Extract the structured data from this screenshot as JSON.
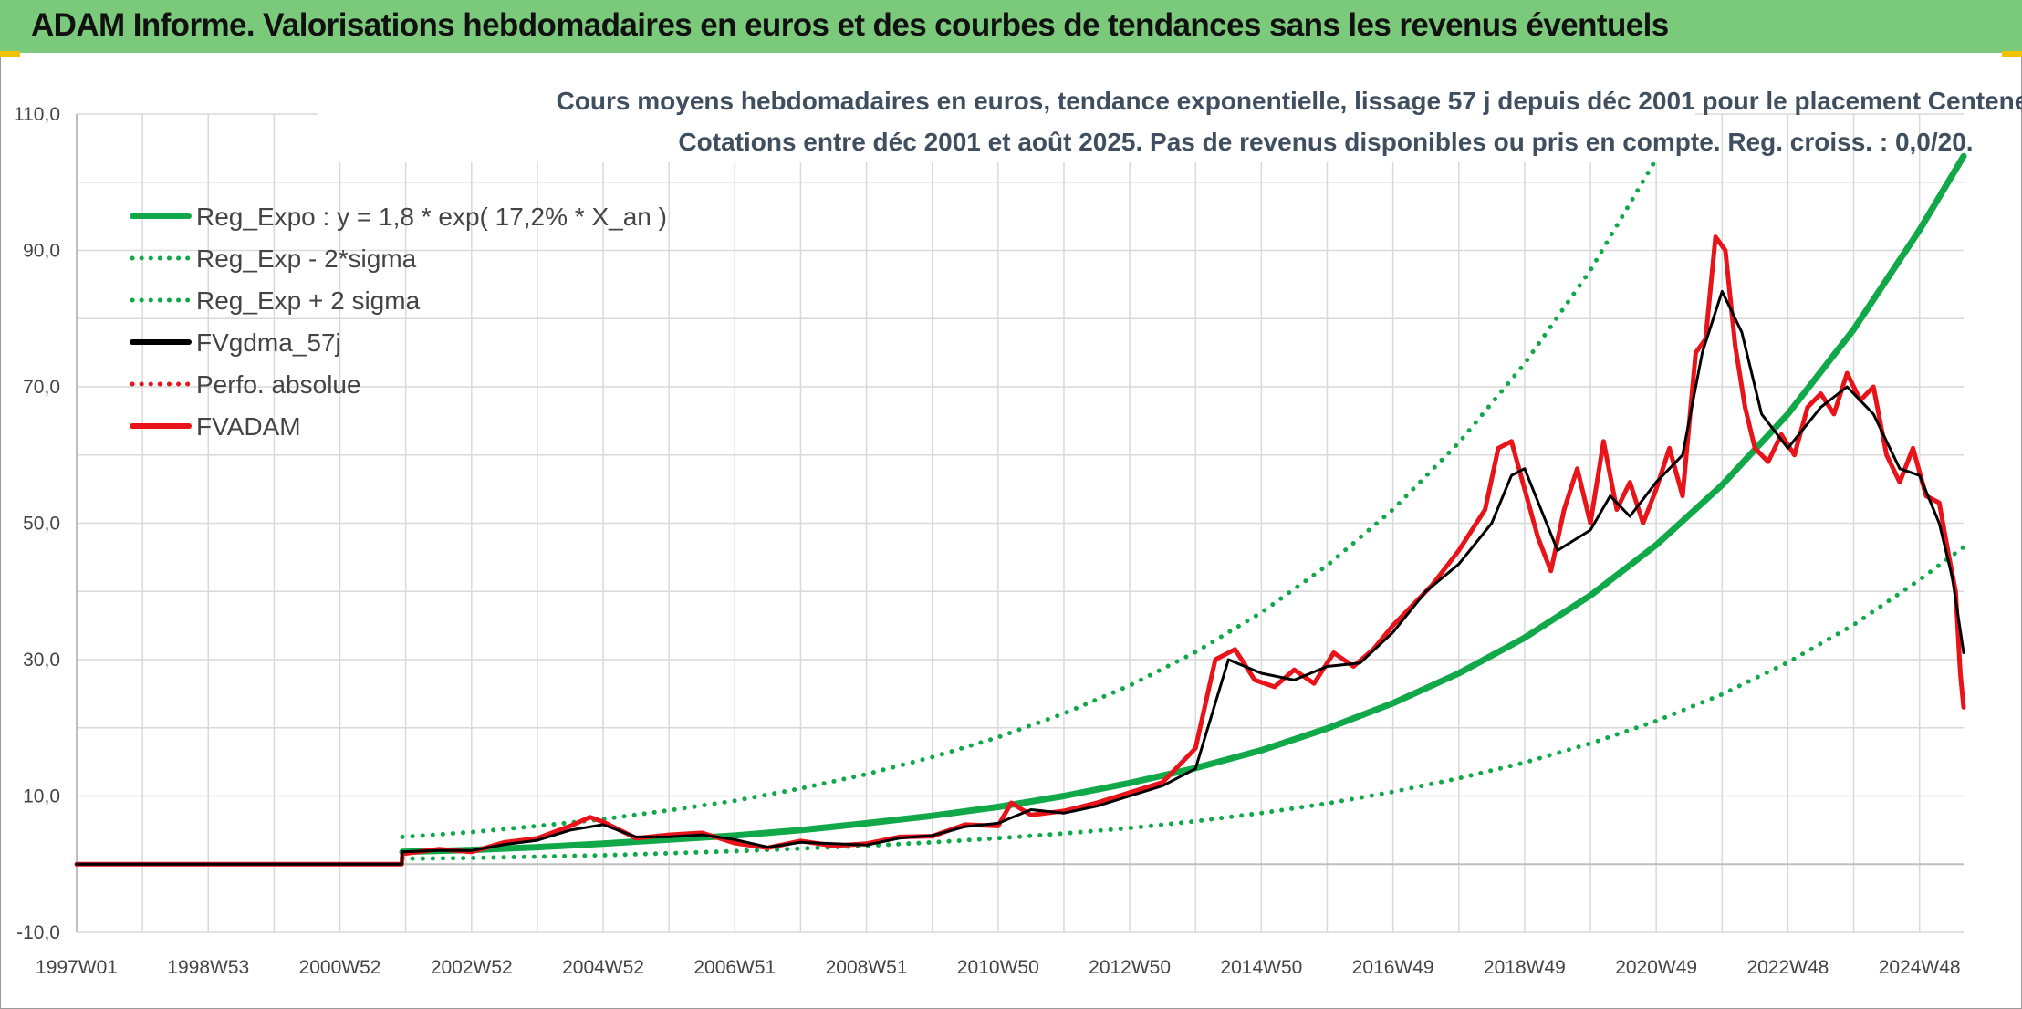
{
  "header": {
    "title": "ADAM Informe. Valorisations hebdomadaires en euros et des courbes de tendances sans les revenus éventuels",
    "background_color": "#7bc97a"
  },
  "chart_data": {
    "type": "line",
    "title": "Cours moyens hebdomadaires en euros, tendance exponentielle, lissage 57 j depuis déc 2001 pour le placement Centene Corp",
    "subtitle": "Cotations entre déc 2001 et août 2025. Pas de revenus disponibles ou pris en compte. Reg. croiss. : 0,0/20.",
    "xlabel": "",
    "ylabel": "",
    "x_range": [
      1997.0,
      2025.67
    ],
    "ylim": [
      -10,
      110
    ],
    "y_ticks": [
      -10,
      10,
      30,
      50,
      70,
      90,
      110
    ],
    "y_tick_labels": [
      "-10,0",
      "10,0",
      "30,0",
      "50,0",
      "70,0",
      "90,0",
      "110,0"
    ],
    "x_ticks": [
      1997.0,
      1999.0,
      2001.0,
      2003.0,
      2005.0,
      2007.0,
      2009.0,
      2011.0,
      2013.0,
      2015.0,
      2017.0,
      2019.0,
      2021.0,
      2023.0,
      2025.0
    ],
    "x_tick_labels": [
      "1997W01",
      "1998W53",
      "2000W52",
      "2002W52",
      "2004W52",
      "2006W51",
      "2008W51",
      "2010W50",
      "2012W50",
      "2014W50",
      "2016W49",
      "2018W49",
      "2020W49",
      "2022W48",
      "2024W48"
    ],
    "grid": true,
    "legend_position": "top-left",
    "series": [
      {
        "name": "Reg_Expo : y = 1,8 * exp( 17,2% *  X_an )",
        "color": "#11a84a",
        "style": "solid",
        "x": [
          2001.95,
          2003,
          2004,
          2005,
          2006,
          2007,
          2008,
          2009,
          2010,
          2011,
          2012,
          2013,
          2014,
          2015,
          2016,
          2017,
          2018,
          2019,
          2020,
          2021,
          2022,
          2023,
          2024,
          2025,
          2025.67
        ],
        "y": [
          1.8,
          2.1,
          2.5,
          3.0,
          3.6,
          4.2,
          5.0,
          6.0,
          7.1,
          8.4,
          10.0,
          11.9,
          14.1,
          16.7,
          19.9,
          23.6,
          28.0,
          33.2,
          39.4,
          46.8,
          55.6,
          66.0,
          78.4,
          93.0,
          103.8
        ]
      },
      {
        "name": "Reg_Exp - 2*sigma",
        "color": "#11a84a",
        "style": "dotted",
        "x": [
          2001.95,
          2003,
          2004,
          2005,
          2006,
          2007,
          2008,
          2009,
          2010,
          2011,
          2012,
          2013,
          2014,
          2015,
          2016,
          2017,
          2018,
          2019,
          2020,
          2021,
          2022,
          2023,
          2024,
          2025,
          2025.67
        ],
        "y": [
          0.8,
          0.9,
          1.1,
          1.3,
          1.6,
          1.9,
          2.3,
          2.7,
          3.2,
          3.8,
          4.5,
          5.3,
          6.3,
          7.5,
          8.9,
          10.6,
          12.6,
          14.9,
          17.7,
          21.0,
          24.9,
          29.6,
          35.1,
          41.7,
          46.5
        ]
      },
      {
        "name": "Reg_Exp + 2 sigma",
        "color": "#11a84a",
        "style": "dotted",
        "x": [
          2001.95,
          2003,
          2004,
          2005,
          2006,
          2007,
          2008,
          2009,
          2010,
          2011,
          2012,
          2013,
          2014,
          2015,
          2016,
          2017,
          2018,
          2019,
          2020,
          2021,
          2021.35
        ],
        "y": [
          4.0,
          4.7,
          5.6,
          6.6,
          7.9,
          9.3,
          11.1,
          13.2,
          15.7,
          18.6,
          22.1,
          26.2,
          31.1,
          36.9,
          43.8,
          52.0,
          61.8,
          73.4,
          87.1,
          103.4,
          110.0
        ]
      },
      {
        "name": "FVgdma_57j",
        "color": "#000000",
        "style": "solid",
        "x": [
          1997.0,
          2001.0,
          2001.94,
          2001.95,
          2002.5,
          2003.0,
          2003.5,
          2004.0,
          2004.5,
          2005.0,
          2005.5,
          2006.0,
          2006.5,
          2007.0,
          2007.5,
          2008.0,
          2008.5,
          2009.0,
          2009.5,
          2010.0,
          2010.5,
          2011.0,
          2011.5,
          2012.0,
          2012.5,
          2013.0,
          2013.5,
          2014.0,
          2014.5,
          2015.0,
          2015.5,
          2016.0,
          2016.5,
          2017.0,
          2017.5,
          2018.0,
          2018.5,
          2018.8,
          2019.0,
          2019.5,
          2020.0,
          2020.3,
          2020.6,
          2021.0,
          2021.4,
          2021.7,
          2022.0,
          2022.3,
          2022.6,
          2023.0,
          2023.5,
          2023.9,
          2024.3,
          2024.7,
          2025.0,
          2025.3,
          2025.5,
          2025.67
        ],
        "y": [
          0.0,
          0.0,
          0.0,
          1.8,
          2.0,
          2.0,
          2.9,
          3.5,
          5.0,
          5.8,
          4.0,
          4.0,
          4.3,
          3.6,
          2.5,
          3.2,
          3.0,
          2.8,
          3.8,
          4.2,
          5.5,
          6.0,
          8.0,
          7.5,
          8.5,
          10.0,
          11.5,
          14.0,
          30.0,
          28.0,
          27.0,
          29.0,
          29.5,
          34.0,
          40.0,
          44.0,
          50.0,
          57.0,
          58.0,
          46.0,
          49.0,
          54.0,
          51.0,
          56.0,
          60.0,
          75.0,
          84.0,
          78.0,
          66.0,
          61.0,
          67.0,
          70.0,
          66.0,
          58.0,
          57.0,
          50.0,
          42.0,
          31.0
        ]
      },
      {
        "name": "Perfo. absolue",
        "color": "#e8141a",
        "style": "dotted",
        "x": [],
        "y": []
      },
      {
        "name": "FVADAM",
        "color": "#e8141a",
        "style": "solid",
        "x": [
          1997.0,
          2001.0,
          2001.94,
          2001.95,
          2002.5,
          2003.0,
          2003.5,
          2004.0,
          2004.5,
          2004.8,
          2005.0,
          2005.5,
          2006.0,
          2006.5,
          2007.0,
          2007.5,
          2008.0,
          2008.5,
          2009.0,
          2009.5,
          2010.0,
          2010.5,
          2011.0,
          2011.2,
          2011.5,
          2012.0,
          2012.5,
          2013.0,
          2013.5,
          2014.0,
          2014.3,
          2014.6,
          2014.9,
          2015.2,
          2015.5,
          2015.8,
          2016.1,
          2016.4,
          2016.7,
          2017.0,
          2017.3,
          2017.6,
          2018.0,
          2018.4,
          2018.6,
          2018.8,
          2019.0,
          2019.2,
          2019.4,
          2019.6,
          2019.8,
          2020.0,
          2020.2,
          2020.4,
          2020.6,
          2020.8,
          2021.0,
          2021.2,
          2021.4,
          2021.6,
          2021.75,
          2021.9,
          2022.05,
          2022.2,
          2022.35,
          2022.5,
          2022.7,
          2022.9,
          2023.1,
          2023.3,
          2023.5,
          2023.7,
          2023.9,
          2024.1,
          2024.3,
          2024.5,
          2024.7,
          2024.9,
          2025.1,
          2025.3,
          2025.45,
          2025.55,
          2025.62,
          2025.67
        ],
        "y": [
          0.0,
          0.0,
          0.0,
          1.5,
          2.2,
          1.8,
          3.2,
          3.8,
          5.6,
          6.9,
          6.2,
          3.8,
          4.3,
          4.6,
          3.1,
          2.4,
          3.4,
          2.7,
          3.0,
          4.0,
          4.1,
          5.8,
          5.6,
          9.0,
          7.2,
          7.8,
          9.0,
          10.5,
          12.0,
          17.0,
          30.0,
          31.5,
          27.0,
          26.0,
          28.5,
          26.5,
          31.0,
          29.0,
          31.5,
          35.0,
          38.0,
          41.0,
          46.0,
          52.0,
          61.0,
          62.0,
          55.0,
          48.0,
          43.0,
          52.0,
          58.0,
          50.0,
          62.0,
          52.0,
          56.0,
          50.0,
          55.0,
          61.0,
          54.0,
          75.0,
          77.0,
          92.0,
          90.0,
          76.0,
          67.0,
          61.0,
          59.0,
          63.0,
          60.0,
          67.0,
          69.0,
          66.0,
          72.0,
          68.0,
          70.0,
          60.0,
          56.0,
          61.0,
          54.0,
          53.0,
          45.0,
          40.0,
          28.0,
          23.0
        ]
      }
    ]
  }
}
